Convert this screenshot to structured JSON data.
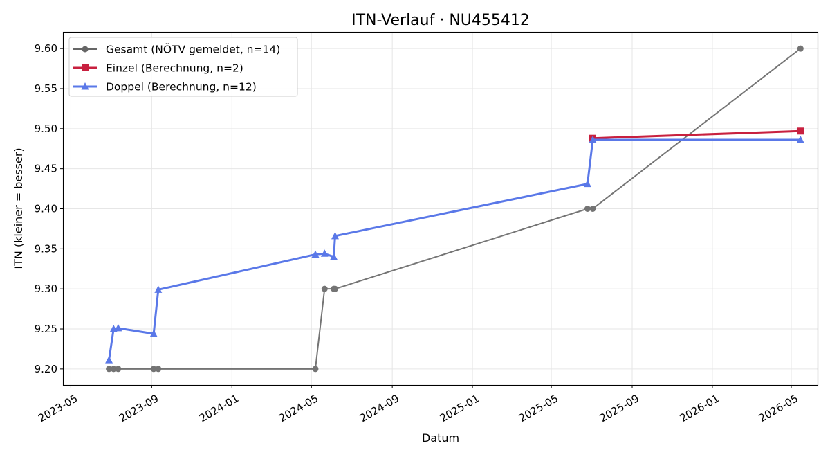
{
  "chart_data": {
    "type": "line",
    "title": "ITN-Verlauf · NU455412",
    "xlabel": "Datum",
    "ylabel": "ITN  (kleiner = besser)",
    "x_ticks": [
      "2023-05",
      "2023-09",
      "2024-01",
      "2024-05",
      "2024-09",
      "2025-01",
      "2025-05",
      "2025-09",
      "2026-01",
      "2026-05"
    ],
    "y_ticks": [
      "9.20",
      "9.25",
      "9.30",
      "9.35",
      "9.40",
      "9.45",
      "9.50",
      "9.55",
      "9.60"
    ],
    "xlim": [
      "2023-04-20",
      "2026-06-10"
    ],
    "ylim": [
      9.18,
      9.62
    ],
    "grid": true,
    "legend_position": "top-left",
    "series": [
      {
        "name": "Gesamt (NÖTV gemeldet, n=14)",
        "color": "#666666",
        "marker": "circle",
        "x": [
          "2023-06-28",
          "2023-07-05",
          "2023-07-12",
          "2023-09-04",
          "2023-09-11",
          "2024-05-07",
          "2024-05-21",
          "2024-06-04",
          "2024-06-06",
          "2025-06-25",
          "2025-07-03",
          "2026-05-15"
        ],
        "y": [
          9.2,
          9.2,
          9.2,
          9.2,
          9.2,
          9.2,
          9.3,
          9.3,
          9.3,
          9.4,
          9.4,
          9.6
        ]
      },
      {
        "name": "Einzel (Berechnung, n=2)",
        "color": "#c8203f",
        "marker": "square",
        "x": [
          "2025-07-03",
          "2026-05-15"
        ],
        "y": [
          9.488,
          9.497
        ]
      },
      {
        "name": "Doppel (Berechnung, n=12)",
        "color": "#5a78e8",
        "marker": "triangle",
        "x": [
          "2023-06-28",
          "2023-07-05",
          "2023-07-12",
          "2023-09-04",
          "2023-09-11",
          "2024-05-07",
          "2024-05-21",
          "2024-06-04",
          "2024-06-06",
          "2025-06-25",
          "2025-07-03",
          "2026-05-15"
        ],
        "y": [
          9.211,
          9.25,
          9.251,
          9.244,
          9.299,
          9.343,
          9.344,
          9.34,
          9.366,
          9.431,
          9.486,
          9.486
        ]
      }
    ]
  }
}
